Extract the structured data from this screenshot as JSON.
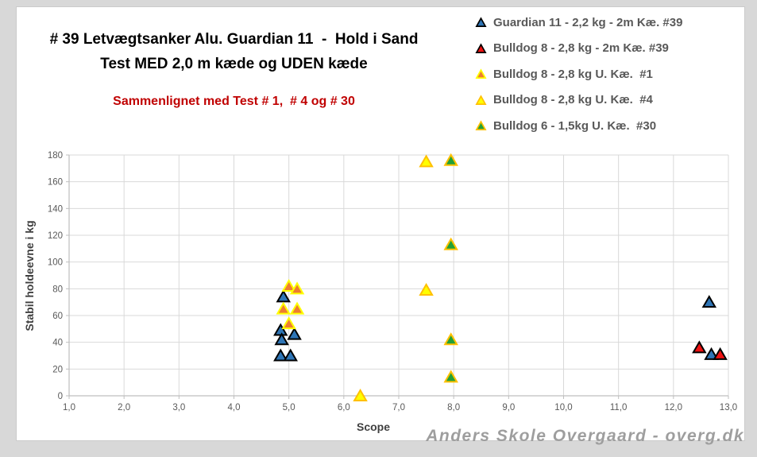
{
  "frame": {
    "outer_bg": "#D8D8D8",
    "panel_bg": "#FFFFFF",
    "panel_border": "#CBCBCB"
  },
  "header": {
    "title_line1": "# 39 Letvægtsanker Alu. Guardian 11  -  Hold i Sand",
    "title_line2": "Test MED 2,0 m kæde og UDEN kæde",
    "title_color": "#000000",
    "subtitle": "Sammenlignet med Test # 1,  # 4 og # 30",
    "subtitle_color": "#C00000"
  },
  "watermark": {
    "text": "Anders Skole Overgaard - overg.dk",
    "color": "#9E9E9E"
  },
  "chart_data": {
    "type": "scatter",
    "title": "# 39 Letvægtsanker Alu. Guardian 11 - Hold i Sand Test MED 2,0 m kæde og UDEN kæde",
    "subtitle": "Sammenlignet med Test # 1, # 4 og # 30",
    "xlabel": "Scope",
    "ylabel": "Stabil holdeevne i kg",
    "xlim": [
      1.0,
      13.0
    ],
    "ylim": [
      0,
      180
    ],
    "xtick_values": [
      1,
      2,
      3,
      4,
      5,
      6,
      7,
      8,
      9,
      10,
      11,
      12,
      13
    ],
    "xtick_labels": [
      "1,0",
      "2,0",
      "3,0",
      "4,0",
      "5,0",
      "6,0",
      "7,0",
      "8,0",
      "9,0",
      "10,0",
      "11,0",
      "12,0",
      "13,0"
    ],
    "ytick_values": [
      0,
      20,
      40,
      60,
      80,
      100,
      120,
      140,
      160,
      180
    ],
    "ytick_labels": [
      "0",
      "20",
      "40",
      "60",
      "80",
      "100",
      "120",
      "140",
      "160",
      "180"
    ],
    "grid": true,
    "legend_position": "top-right",
    "marker": "triangle",
    "axis_text_color": "#595959",
    "axis_title_color": "#404040",
    "legend_text_color": "#595959",
    "gridline_color": "#D9D9D9",
    "axis_line_color": "#BFBFBF",
    "series": [
      {
        "name": "Guardian 11 - 2,2 kg - 2m Kæ. #39",
        "fill": "#2E75B6",
        "stroke": "#000000",
        "points": [
          [
            4.9,
            74
          ],
          [
            4.85,
            49
          ],
          [
            5.1,
            46
          ],
          [
            4.87,
            42
          ],
          [
            4.85,
            30
          ],
          [
            5.03,
            30
          ],
          [
            12.65,
            70
          ],
          [
            12.69,
            31
          ]
        ]
      },
      {
        "name": "Bulldog 8 - 2,8 kg - 2m Kæ. #39",
        "fill": "#EE1111",
        "stroke": "#000000",
        "points": [
          [
            12.47,
            36
          ],
          [
            12.85,
            31
          ]
        ]
      },
      {
        "name": "Bulldog 8 - 2,8 kg U. Kæ.  #1",
        "fill": "#ED7D31",
        "stroke": "#FFFF00",
        "points": [
          [
            5.0,
            82
          ],
          [
            5.15,
            80
          ],
          [
            4.9,
            65
          ],
          [
            5.15,
            65
          ],
          [
            5.0,
            54
          ]
        ]
      },
      {
        "name": "Bulldog 8 - 2,8 kg U. Kæ.  #4",
        "fill": "#FFFF00",
        "stroke": "#FFC000",
        "points": [
          [
            6.3,
            0
          ],
          [
            7.5,
            79
          ],
          [
            7.5,
            175
          ]
        ]
      },
      {
        "name": "Bulldog 6 - 1,5kg U. Kæ.  #30",
        "fill": "#22A038",
        "stroke": "#FFC000",
        "points": [
          [
            7.95,
            176
          ],
          [
            7.95,
            113
          ],
          [
            7.95,
            42
          ],
          [
            7.95,
            14
          ]
        ]
      }
    ]
  }
}
